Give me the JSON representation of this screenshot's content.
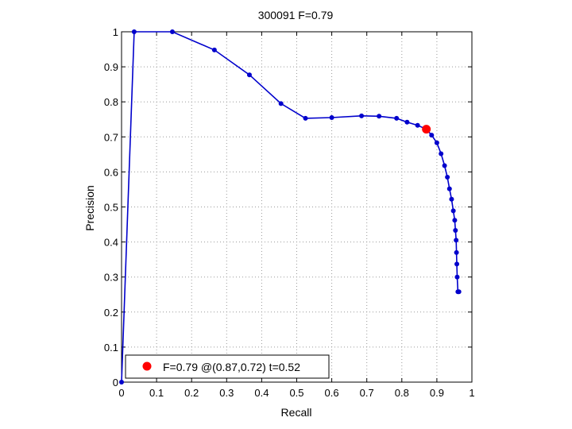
{
  "chart_data": {
    "type": "line",
    "title": "300091 F=0.79",
    "xlabel": "Recall",
    "ylabel": "Precision",
    "xlim": [
      0,
      1
    ],
    "ylim": [
      0,
      1
    ],
    "xticks": [
      "0",
      "0.1",
      "0.2",
      "0.3",
      "0.4",
      "0.5",
      "0.6",
      "0.7",
      "0.8",
      "0.9",
      "1"
    ],
    "yticks": [
      "0",
      "0.1",
      "0.2",
      "0.3",
      "0.4",
      "0.5",
      "0.6",
      "0.7",
      "0.8",
      "0.9",
      "1"
    ],
    "grid": true,
    "legend_position": "bottom-left",
    "line_color": "#0000cc",
    "series": [
      {
        "x": [
          0.0,
          0.036,
          0.145,
          0.265,
          0.365,
          0.455,
          0.525,
          0.6,
          0.685,
          0.735,
          0.785,
          0.815,
          0.845,
          0.87,
          0.885,
          0.9,
          0.912,
          0.922,
          0.93,
          0.936,
          0.942,
          0.947,
          0.951,
          0.953,
          0.955,
          0.956,
          0.957,
          0.958,
          0.96,
          0.963
        ],
        "y": [
          0.0,
          1.0,
          1.0,
          0.948,
          0.877,
          0.795,
          0.753,
          0.755,
          0.76,
          0.759,
          0.753,
          0.742,
          0.733,
          0.722,
          0.705,
          0.683,
          0.652,
          0.618,
          0.585,
          0.552,
          0.522,
          0.489,
          0.462,
          0.433,
          0.405,
          0.37,
          0.337,
          0.3,
          0.258,
          0.258
        ]
      }
    ],
    "best_point": {
      "x": 0.87,
      "y": 0.722,
      "color": "#ff0000",
      "label": "F=0.79 @(0.87,0.72) t=0.52"
    }
  }
}
